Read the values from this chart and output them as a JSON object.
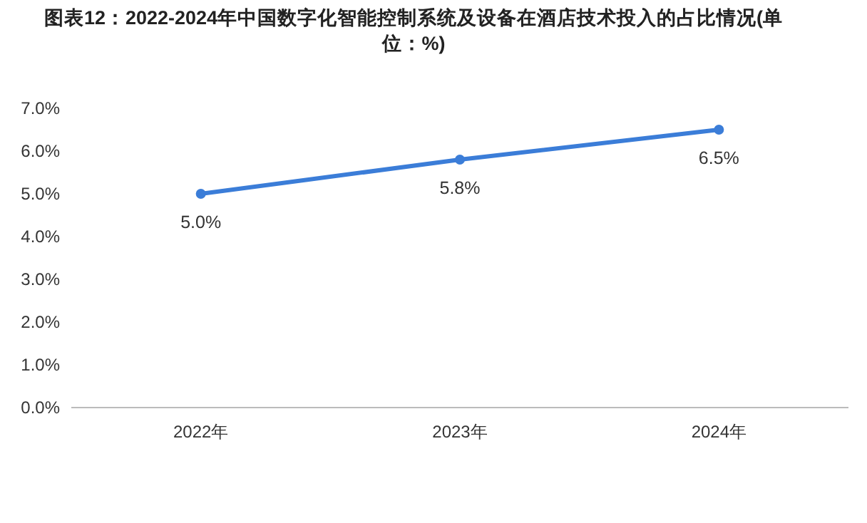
{
  "chart_data": {
    "type": "line",
    "title": "图表12：2022-2024年中国数字化智能控制系统及设备在酒店技术投入的占比情况(单位：%)",
    "categories": [
      "2022年",
      "2023年",
      "2024年"
    ],
    "series": [
      {
        "color": "#3b7dd8",
        "values": [
          5.0,
          5.8,
          6.5
        ],
        "value_labels": [
          "5.0%",
          "5.8%",
          "6.5%"
        ]
      }
    ],
    "ylim": [
      0,
      7
    ],
    "yticks": [
      {
        "value": 0,
        "label": "0.0%"
      },
      {
        "value": 1,
        "label": "1.0%"
      },
      {
        "value": 2,
        "label": "2.0%"
      },
      {
        "value": 3,
        "label": "3.0%"
      },
      {
        "value": 4,
        "label": "4.0%"
      },
      {
        "value": 5,
        "label": "5.0%"
      },
      {
        "value": 6,
        "label": "6.0%"
      },
      {
        "value": 7,
        "label": "7.0%"
      }
    ],
    "marker": "circle",
    "line_style": "solid"
  }
}
